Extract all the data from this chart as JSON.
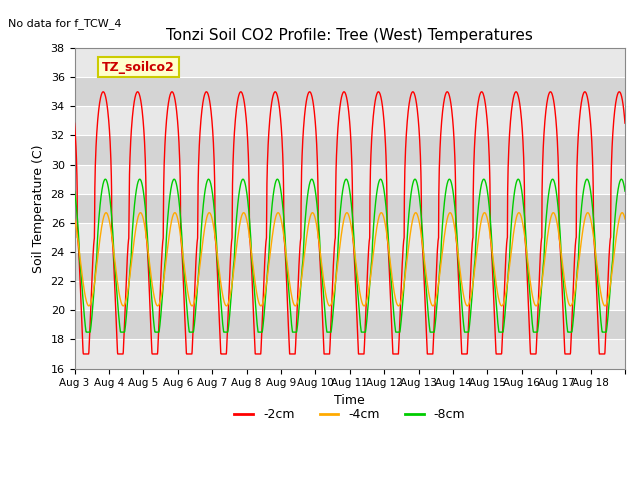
{
  "title": "Tonzi Soil CO2 Profile: Tree (West) Temperatures",
  "no_data_label": "No data for f_TCW_4",
  "ylabel": "Soil Temperature (C)",
  "xlabel": "Time",
  "ylim": [
    16,
    38
  ],
  "legend_entries": [
    "-2cm",
    "-4cm",
    "-8cm"
  ],
  "legend_colors": [
    "#ff0000",
    "#ffaa00",
    "#00cc00"
  ],
  "x_tick_labels": [
    "Aug 3",
    "Aug 4",
    "Aug 5",
    "Aug 6",
    "Aug 7",
    "Aug 8",
    "Aug 9",
    "Aug 10",
    "Aug 11",
    "Aug 12",
    "Aug 13",
    "Aug 14",
    "Aug 15",
    "Aug 16",
    "Aug 17",
    "Aug 18"
  ],
  "annotation_box": {
    "text": "TZ_soilco2",
    "color": "#cc0000",
    "bg": "#ffffcc",
    "edge": "#cccc00"
  },
  "n_days": 16,
  "samples_per_day": 144,
  "cm2_mean": 25.0,
  "cm2_amp": 10.0,
  "cm2_phase_hour": 14.0,
  "cm2_sharpness": 0.35,
  "cm4_mean": 23.5,
  "cm4_amp": 3.2,
  "cm4_phase_hour": 16.0,
  "cm8_mean": 23.5,
  "cm8_amp": 5.5,
  "cm8_phase_hour": 15.5,
  "plot_bg_bands": [
    "#e8e8e8",
    "#d8d8d8"
  ],
  "band_step": 2
}
